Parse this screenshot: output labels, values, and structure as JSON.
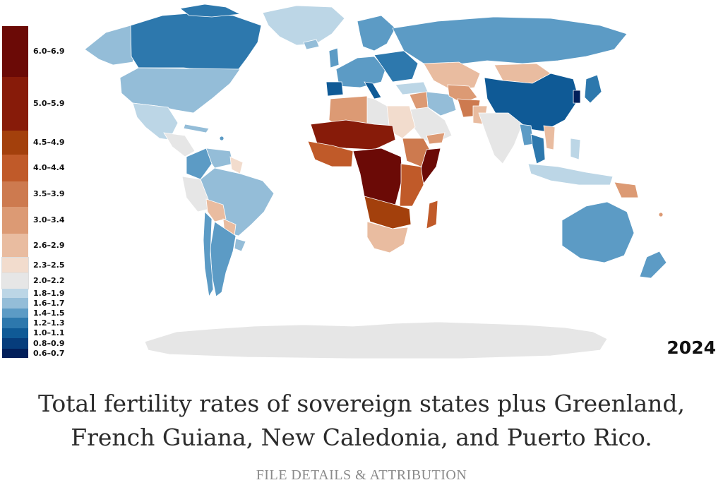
{
  "map": {
    "year": "2024",
    "colors": {
      "r69": "#6b0a06",
      "r59": "#871b09",
      "r49": "#a3400c",
      "r44": "#c05a29",
      "r39": "#cd7a4f",
      "r34": "#dc9a74",
      "r29": "#e9bca0",
      "r25": "#f2dccd",
      "r22": "#e6e6e6",
      "b19": "#bcd6e6",
      "b17": "#94bdd8",
      "b15": "#5c9bc5",
      "b13": "#2d78ad",
      "b11": "#0f5a96",
      "b09": "#063d7c",
      "b07": "#021f5a",
      "antarctica": "#e6e6e6"
    },
    "legend": [
      {
        "label": "6.0–6.9",
        "color": "#6b0a06"
      },
      {
        "label": "5.0–5.9",
        "color": "#871b09"
      },
      {
        "label": "4.5–4.9",
        "color": "#a3400c"
      },
      {
        "label": "4.0–4.4",
        "color": "#c05a29"
      },
      {
        "label": "3.5–3.9",
        "color": "#cd7a4f"
      },
      {
        "label": "3.0–3.4",
        "color": "#dc9a74"
      },
      {
        "label": "2.6–2.9",
        "color": "#e9bca0"
      },
      {
        "label": "2.3–2.5",
        "color": "#f2dccd"
      },
      {
        "label": "2.0–2.2",
        "color": "#e6e6e6"
      },
      {
        "label": "1.8–1.9",
        "color": "#bcd6e6"
      },
      {
        "label": "1.6–1.7",
        "color": "#94bdd8"
      },
      {
        "label": "1.4–1.5",
        "color": "#5c9bc5"
      },
      {
        "label": "1.2–1.3",
        "color": "#2d78ad"
      },
      {
        "label": "1.0–1.1",
        "color": "#0f5a96"
      },
      {
        "label": "0.8–0.9",
        "color": "#063d7c"
      },
      {
        "label": "0.6–0.7",
        "color": "#021f5a"
      }
    ]
  },
  "caption": {
    "line1": "Total fertility rates of sovereign states plus Greenland,",
    "line2": "French Guiana, New Caledonia, and Puerto Rico."
  },
  "details_link": "FILE DETAILS & ATTRIBUTION"
}
